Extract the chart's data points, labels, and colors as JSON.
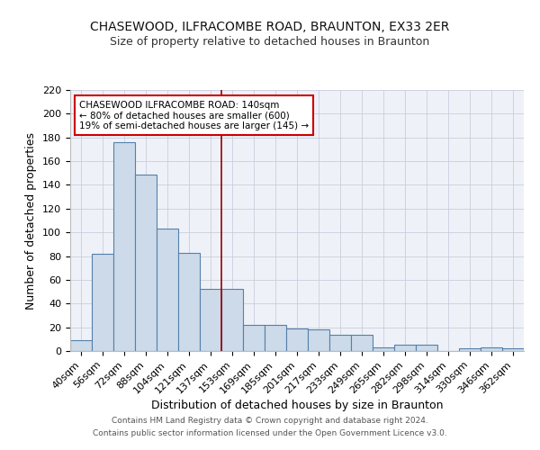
{
  "title": "CHASEWOOD, ILFRACOMBE ROAD, BRAUNTON, EX33 2ER",
  "subtitle": "Size of property relative to detached houses in Braunton",
  "xlabel": "Distribution of detached houses by size in Braunton",
  "ylabel": "Number of detached properties",
  "categories": [
    "40sqm",
    "56sqm",
    "72sqm",
    "88sqm",
    "104sqm",
    "121sqm",
    "137sqm",
    "153sqm",
    "169sqm",
    "185sqm",
    "201sqm",
    "217sqm",
    "233sqm",
    "249sqm",
    "265sqm",
    "282sqm",
    "298sqm",
    "314sqm",
    "330sqm",
    "346sqm",
    "362sqm"
  ],
  "values": [
    9,
    82,
    176,
    149,
    103,
    83,
    52,
    52,
    22,
    22,
    19,
    18,
    14,
    14,
    3,
    5,
    5,
    0,
    2,
    3,
    2
  ],
  "bar_color": "#ccdaea",
  "bar_edge_color": "#5580aa",
  "bar_edge_width": 0.8,
  "vline_color": "#990000",
  "vline_x": 6.5,
  "annotation_text": "CHASEWOOD ILFRACOMBE ROAD: 140sqm\n← 80% of detached houses are smaller (600)\n19% of semi-detached houses are larger (145) →",
  "annotation_box_color": "#ffffff",
  "annotation_box_edge": "#cc0000",
  "annotation_fontsize": 7.5,
  "title_fontsize": 10,
  "subtitle_fontsize": 9,
  "xlabel_fontsize": 9,
  "ylabel_fontsize": 9,
  "tick_fontsize": 8,
  "ylim": [
    0,
    220
  ],
  "yticks": [
    0,
    20,
    40,
    60,
    80,
    100,
    120,
    140,
    160,
    180,
    200,
    220
  ],
  "grid_color": "#ccccdd",
  "bg_color": "#eef2f8",
  "footer_line1": "Contains HM Land Registry data © Crown copyright and database right 2024.",
  "footer_line2": "Contains public sector information licensed under the Open Government Licence v3.0."
}
